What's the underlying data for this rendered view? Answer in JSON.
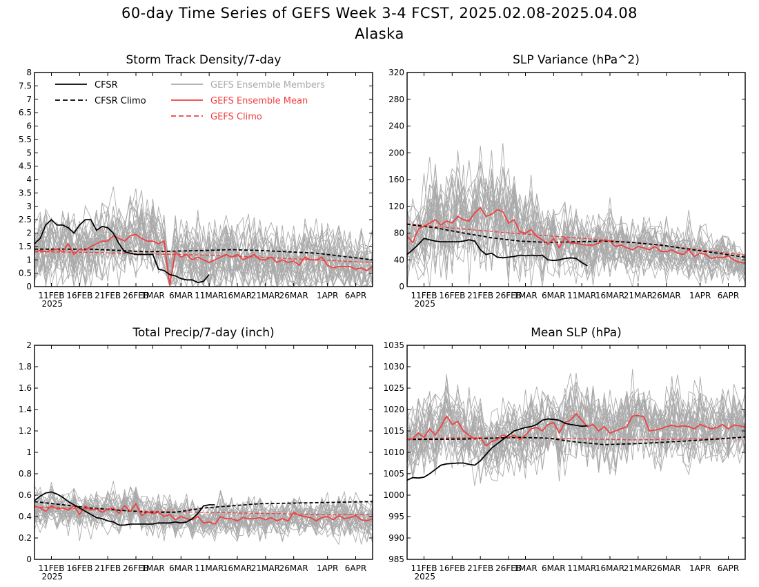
{
  "figure": {
    "title": "60-day Time Series of GEFS Week 3-4 FCST, 2025.02.08-2025.04.08",
    "subtitle": "Alaska"
  },
  "colors": {
    "cfsr": "#000000",
    "ensemble_member": "#aaaaaa",
    "ensemble_mean": "#f04040",
    "gefs_climo": "#f04040"
  },
  "legend": {
    "cfsr": "CFSR",
    "cfsr_climo": "CFSR Climo",
    "members": "GEFS Ensemble Members",
    "mean": "GEFS Ensemble Mean",
    "gefs_climo": "GEFS Climo"
  },
  "x_axis": {
    "days": 60,
    "ticks": [
      {
        "day": 3,
        "label": "11FEB"
      },
      {
        "day": 8,
        "label": "16FEB"
      },
      {
        "day": 13,
        "label": "21FEB"
      },
      {
        "day": 18,
        "label": "26FEB"
      },
      {
        "day": 21,
        "label": "1MAR"
      },
      {
        "day": 26,
        "label": "6MAR"
      },
      {
        "day": 31,
        "label": "11MAR"
      },
      {
        "day": 36,
        "label": "16MAR"
      },
      {
        "day": 41,
        "label": "21MAR"
      },
      {
        "day": 46,
        "label": "26MAR"
      },
      {
        "day": 52,
        "label": "1APR"
      },
      {
        "day": 57,
        "label": "6APR"
      }
    ],
    "year_label": "2025"
  },
  "chart_data": [
    {
      "type": "line",
      "title": "Storm Track Density/7-day",
      "ylim": [
        0,
        8
      ],
      "yticks": [
        "0",
        "0.5",
        "1",
        "1.5",
        "2",
        "2.5",
        "3",
        "3.5",
        "4",
        "4.5",
        "5",
        "5.5",
        "6",
        "6.5",
        "7",
        "7.5",
        "8"
      ],
      "legend_placement": "top-left",
      "members": {
        "count": 30,
        "spread": 0.65,
        "seed": 11
      },
      "series": [
        {
          "name": "CFSR",
          "x": [
            0,
            1,
            2,
            3,
            4,
            5,
            6,
            7,
            8,
            9,
            10,
            11,
            12,
            13,
            14,
            15,
            16,
            17,
            18,
            19,
            20,
            21,
            22,
            23,
            24,
            25,
            26,
            27,
            28,
            29,
            30,
            31
          ],
          "values": [
            1.6,
            1.8,
            2.3,
            2.5,
            2.3,
            2.3,
            2.2,
            2.0,
            2.3,
            2.5,
            2.5,
            2.1,
            2.25,
            2.2,
            2.0,
            1.6,
            1.3,
            1.25,
            1.2,
            1.2,
            1.2,
            1.2,
            0.65,
            0.6,
            0.45,
            0.4,
            0.3,
            0.25,
            0.25,
            0.15,
            0.2,
            0.45
          ]
        },
        {
          "name": "CFSR Climo",
          "x": [
            0,
            10,
            20,
            30,
            35,
            40,
            50,
            60
          ],
          "values": [
            1.4,
            1.4,
            1.3,
            1.35,
            1.38,
            1.35,
            1.25,
            1.0
          ]
        },
        {
          "name": "GEFS Ensemble Mean",
          "x": [
            0,
            1,
            2,
            3,
            4,
            5,
            6,
            7,
            8,
            9,
            10,
            11,
            12,
            13,
            14,
            15,
            16,
            17,
            18,
            19,
            20,
            21,
            22,
            23,
            24,
            25,
            26,
            27,
            28,
            29,
            30,
            31,
            32,
            33,
            34,
            35,
            36,
            37,
            38,
            39,
            40,
            41,
            42,
            43,
            44,
            45,
            46,
            47,
            48,
            49,
            50,
            51,
            52,
            53,
            54,
            55,
            56,
            57,
            58,
            59,
            60
          ],
          "values": [
            1.3,
            1.35,
            1.3,
            1.35,
            1.4,
            1.3,
            1.6,
            1.2,
            1.4,
            1.35,
            1.5,
            1.6,
            1.7,
            1.7,
            1.9,
            1.8,
            1.7,
            1.9,
            1.95,
            1.8,
            1.7,
            1.7,
            1.6,
            1.7,
            0.05,
            1.3,
            1.1,
            1.2,
            1.0,
            1.1,
            1.0,
            0.9,
            1.0,
            1.1,
            1.2,
            1.1,
            1.2,
            1.0,
            1.1,
            1.2,
            1.0,
            1.0,
            1.1,
            0.9,
            1.0,
            0.9,
            0.95,
            0.8,
            1.1,
            1.0,
            1.0,
            1.1,
            0.8,
            0.7,
            0.75,
            0.75,
            0.75,
            0.65,
            0.7,
            0.6,
            0.75
          ]
        },
        {
          "name": "GEFS Climo",
          "x": [
            0,
            10,
            20,
            30,
            40,
            50,
            60
          ],
          "values": [
            1.3,
            1.28,
            1.22,
            1.18,
            1.1,
            1.0,
            0.9
          ]
        }
      ]
    },
    {
      "type": "line",
      "title": "SLP Variance (hPa^2)",
      "ylim": [
        0,
        320
      ],
      "yticks": [
        "0",
        "40",
        "80",
        "120",
        "160",
        "200",
        "240",
        "280",
        "320"
      ],
      "members": {
        "count": 30,
        "spread": 0.38,
        "seed": 23
      },
      "series": [
        {
          "name": "CFSR",
          "x": [
            0,
            1,
            2,
            3,
            4,
            5,
            6,
            7,
            8,
            9,
            10,
            11,
            12,
            13,
            14,
            15,
            16,
            17,
            18,
            19,
            20,
            21,
            22,
            23,
            24,
            25,
            26,
            27,
            28,
            29,
            30,
            31,
            32
          ],
          "values": [
            48,
            55,
            63,
            72,
            70,
            68,
            67,
            67,
            67,
            67,
            68,
            70,
            68,
            55,
            48,
            50,
            44,
            43,
            44,
            45,
            47,
            46,
            47,
            46,
            47,
            40,
            39,
            40,
            42,
            43,
            42,
            36,
            31
          ]
        },
        {
          "name": "CFSR Climo",
          "x": [
            0,
            5,
            10,
            15,
            20,
            25,
            30,
            35,
            40,
            45,
            50,
            55,
            60
          ],
          "values": [
            93,
            88,
            80,
            73,
            68,
            66,
            67,
            68,
            66,
            62,
            56,
            50,
            44
          ]
        },
        {
          "name": "GEFS Ensemble Mean",
          "x": [
            0,
            1,
            2,
            3,
            4,
            5,
            6,
            7,
            8,
            9,
            10,
            11,
            12,
            13,
            14,
            15,
            16,
            17,
            18,
            19,
            20,
            21,
            22,
            23,
            24,
            25,
            26,
            27,
            28,
            29,
            30,
            31,
            32,
            33,
            34,
            35,
            36,
            37,
            38,
            39,
            40,
            41,
            42,
            43,
            44,
            45,
            46,
            47,
            48,
            49,
            50,
            51,
            52,
            53,
            54,
            55,
            56,
            57,
            58,
            59,
            60
          ],
          "values": [
            75,
            66,
            86,
            90,
            95,
            100,
            92,
            98,
            95,
            105,
            100,
            98,
            110,
            118,
            105,
            108,
            115,
            112,
            95,
            100,
            82,
            80,
            85,
            75,
            70,
            63,
            72,
            58,
            73,
            65,
            65,
            63,
            62,
            62,
            65,
            70,
            68,
            60,
            62,
            58,
            55,
            60,
            58,
            55,
            60,
            53,
            52,
            55,
            50,
            48,
            55,
            45,
            50,
            48,
            42,
            44,
            43,
            46,
            40,
            36,
            35
          ]
        },
        {
          "name": "GEFS Climo",
          "x": [
            0,
            10,
            20,
            30,
            40,
            50,
            60
          ],
          "values": [
            94,
            86,
            79,
            73,
            66,
            57,
            47
          ]
        }
      ]
    },
    {
      "type": "line",
      "title": "Total Precip/7-day (inch)",
      "ylim": [
        0,
        2
      ],
      "yticks": [
        "0",
        "0.2",
        "0.4",
        "0.6",
        "0.8",
        "1",
        "1.2",
        "1.4",
        "1.6",
        "1.8",
        "2"
      ],
      "members": {
        "count": 30,
        "spread": 0.09,
        "seed": 37
      },
      "series": [
        {
          "name": "CFSR",
          "x": [
            0,
            1,
            2,
            3,
            4,
            5,
            6,
            7,
            8,
            9,
            10,
            11,
            12,
            13,
            14,
            15,
            16,
            17,
            18,
            19,
            20,
            21,
            22,
            23,
            24,
            25,
            26,
            27,
            28,
            29,
            30,
            31,
            32
          ],
          "values": [
            0.55,
            0.59,
            0.62,
            0.63,
            0.61,
            0.58,
            0.54,
            0.51,
            0.48,
            0.45,
            0.42,
            0.39,
            0.38,
            0.36,
            0.35,
            0.32,
            0.32,
            0.33,
            0.33,
            0.33,
            0.33,
            0.33,
            0.34,
            0.34,
            0.34,
            0.35,
            0.34,
            0.35,
            0.38,
            0.43,
            0.5,
            0.51,
            0.51
          ]
        },
        {
          "name": "CFSR Climo",
          "x": [
            0,
            10,
            20,
            25,
            30,
            40,
            50,
            60
          ],
          "values": [
            0.54,
            0.48,
            0.44,
            0.44,
            0.48,
            0.52,
            0.53,
            0.54
          ]
        },
        {
          "name": "GEFS Ensemble Mean",
          "x": [
            0,
            1,
            2,
            3,
            4,
            5,
            6,
            7,
            8,
            9,
            10,
            11,
            12,
            13,
            14,
            15,
            16,
            17,
            18,
            19,
            20,
            21,
            22,
            23,
            24,
            25,
            26,
            27,
            28,
            29,
            30,
            31,
            32,
            33,
            34,
            35,
            36,
            37,
            38,
            39,
            40,
            41,
            42,
            43,
            44,
            45,
            46,
            47,
            48,
            49,
            50,
            51,
            52,
            53,
            54,
            55,
            56,
            57,
            58,
            59,
            60
          ],
          "values": [
            0.5,
            0.48,
            0.45,
            0.5,
            0.47,
            0.48,
            0.46,
            0.5,
            0.42,
            0.5,
            0.46,
            0.47,
            0.44,
            0.47,
            0.48,
            0.43,
            0.5,
            0.45,
            0.52,
            0.41,
            0.44,
            0.43,
            0.44,
            0.4,
            0.42,
            0.37,
            0.4,
            0.38,
            0.37,
            0.4,
            0.34,
            0.35,
            0.33,
            0.4,
            0.38,
            0.38,
            0.36,
            0.39,
            0.38,
            0.38,
            0.39,
            0.37,
            0.39,
            0.36,
            0.38,
            0.36,
            0.44,
            0.41,
            0.4,
            0.39,
            0.36,
            0.39,
            0.4,
            0.37,
            0.41,
            0.38,
            0.39,
            0.41,
            0.37,
            0.36,
            0.38
          ]
        },
        {
          "name": "GEFS Climo",
          "x": [
            0,
            10,
            20,
            30,
            40,
            50,
            60
          ],
          "values": [
            0.49,
            0.47,
            0.45,
            0.44,
            0.43,
            0.42,
            0.42
          ]
        }
      ]
    },
    {
      "type": "line",
      "title": "Mean SLP (hPa)",
      "ylim": [
        985,
        1035
      ],
      "yticks": [
        "985",
        "990",
        "995",
        "1000",
        "1005",
        "1010",
        "1015",
        "1020",
        "1025",
        "1030",
        "1035"
      ],
      "members": {
        "count": 30,
        "spread": 4.2,
        "seed": 53
      },
      "series": [
        {
          "name": "CFSR",
          "x": [
            0,
            1,
            2,
            3,
            4,
            5,
            6,
            7,
            8,
            9,
            10,
            11,
            12,
            13,
            14,
            15,
            16,
            17,
            18,
            19,
            20,
            21,
            22,
            23,
            24,
            25,
            26,
            27,
            28,
            29,
            30,
            31,
            32
          ],
          "values": [
            1003.5,
            1004.1,
            1004,
            1004.2,
            1005,
            1006,
            1007,
            1007.3,
            1007.4,
            1007.5,
            1007.5,
            1007.2,
            1007,
            1008,
            1009.5,
            1011,
            1012,
            1013,
            1014,
            1015,
            1015.4,
            1015.8,
            1016,
            1016.5,
            1017.5,
            1017.8,
            1017.7,
            1017.5,
            1016.8,
            1016.5,
            1016.3,
            1016.1,
            1016.2
          ]
        },
        {
          "name": "CFSR Climo",
          "x": [
            0,
            10,
            15,
            20,
            25,
            30,
            35,
            40,
            45,
            50,
            55,
            60
          ],
          "values": [
            1013,
            1013.1,
            1013.3,
            1013.5,
            1013.3,
            1012.4,
            1011.8,
            1012,
            1012.3,
            1012.7,
            1013.1,
            1013.6
          ]
        },
        {
          "name": "GEFS Ensemble Mean",
          "x": [
            0,
            1,
            2,
            3,
            4,
            5,
            6,
            7,
            8,
            9,
            10,
            11,
            12,
            13,
            14,
            15,
            16,
            17,
            18,
            19,
            20,
            21,
            22,
            23,
            24,
            25,
            26,
            27,
            28,
            29,
            30,
            31,
            32,
            33,
            34,
            35,
            36,
            37,
            38,
            39,
            40,
            41,
            42,
            43,
            44,
            45,
            46,
            47,
            48,
            49,
            50,
            51,
            52,
            53,
            54,
            55,
            56,
            57,
            58,
            59,
            60
          ],
          "values": [
            1013,
            1013.2,
            1014.5,
            1013.5,
            1015.5,
            1014,
            1016,
            1018.5,
            1016.5,
            1017.2,
            1015,
            1014,
            1013,
            1013.5,
            1011.5,
            1012.5,
            1013,
            1014,
            1013.5,
            1014,
            1013,
            1014,
            1015.5,
            1015.8,
            1015,
            1016.5,
            1017,
            1014.5,
            1017,
            1017.5,
            1019,
            1017.5,
            1016,
            1016.5,
            1015,
            1016,
            1014.5,
            1015,
            1015.5,
            1016,
            1018.5,
            1018.6,
            1018.3,
            1015,
            1015.2,
            1015.5,
            1016,
            1016.3,
            1016,
            1016.2,
            1016,
            1015.5,
            1016.5,
            1016,
            1015.5,
            1015.8,
            1016.5,
            1015.5,
            1016.4,
            1016.2,
            1015.9
          ]
        },
        {
          "name": "GEFS Climo",
          "x": [
            0,
            10,
            20,
            30,
            40,
            50,
            60
          ],
          "values": [
            1013.2,
            1013.4,
            1013.4,
            1013.2,
            1012.9,
            1013.1,
            1013.4
          ]
        }
      ]
    }
  ]
}
